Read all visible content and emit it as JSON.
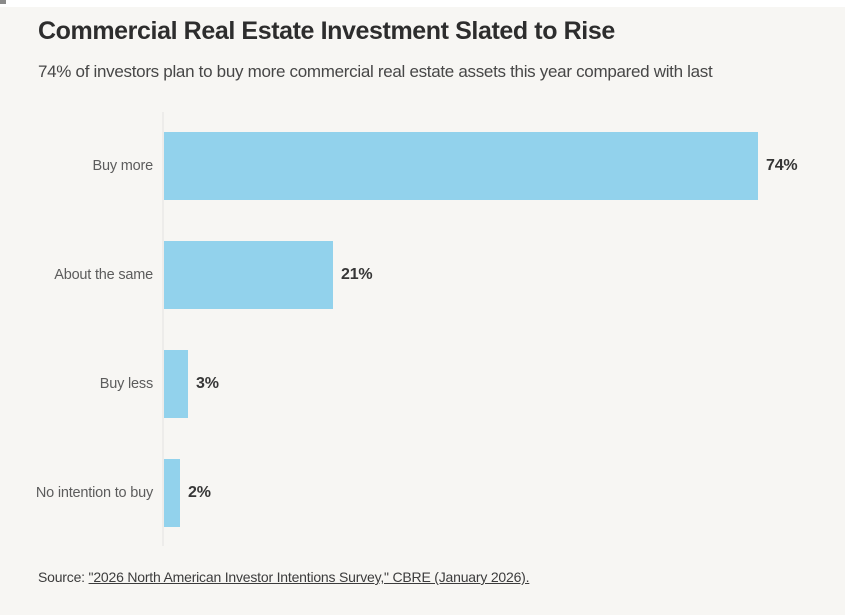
{
  "header": {
    "title": "Commercial Real Estate Investment Slated to Rise",
    "subtitle": "74% of investors plan to buy more commercial real estate assets this year compared with last"
  },
  "chart_data": {
    "type": "bar",
    "orientation": "horizontal",
    "title": "Commercial Real Estate Investment Slated to Rise",
    "subtitle": "74% of investors plan to buy more commercial real estate assets this year compared with last",
    "categories": [
      "Buy more",
      "About the same",
      "Buy less",
      "No intention to buy"
    ],
    "values": [
      74,
      21,
      3,
      2
    ],
    "value_labels": [
      "74%",
      "21%",
      "3%",
      "2%"
    ],
    "bar_color": "#92d2ec",
    "xlabel": "",
    "ylabel": "",
    "xlim": [
      0,
      80
    ],
    "grid": false,
    "legend": false,
    "value_labels_position": "outside-end"
  },
  "source": {
    "prefix": "Source: ",
    "link_text": "\"2026 North American Investor Intentions Survey,\" CBRE (January 2026)."
  }
}
